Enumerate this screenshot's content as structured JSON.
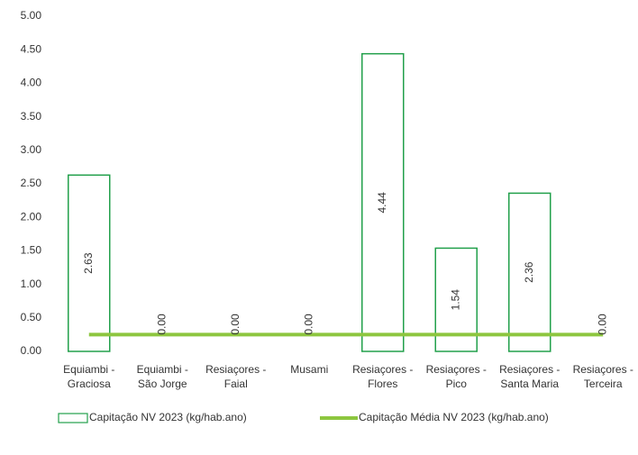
{
  "chart_data": {
    "type": "bar",
    "categories": [
      "Equiambi - Graciosa",
      "Equiambi - São Jorge",
      "Resiaçores - Faial",
      "Musami",
      "Resiaçores - Flores",
      "Resiaçores - Pico",
      "Resiaçores - Santa Maria",
      "Resiaçores - Terceira"
    ],
    "series": [
      {
        "name": "Capitação NV 2023 (kg/hab.ano)",
        "color": "#22a04b",
        "type": "bar",
        "values": [
          2.63,
          0,
          0,
          0,
          4.44,
          1.54,
          2.36,
          0
        ],
        "value_labels": [
          "2.63",
          "0.00",
          "0.00",
          "0.00",
          "4.44",
          "1.54",
          "2.36",
          "0.00"
        ]
      },
      {
        "name": "Capitação Média NV 2023 (kg/hab.ano)",
        "color": "#8dc63f",
        "type": "line",
        "values": [
          0.25,
          0.25,
          0.25,
          0.25,
          0.25,
          0.25,
          0.25,
          0.25
        ]
      }
    ],
    "ylim": [
      0,
      5
    ],
    "yticks": [
      {
        "value": 0,
        "label": "0.00"
      },
      {
        "value": 0.5,
        "label": "0.50"
      },
      {
        "value": 1,
        "label": "1.00"
      },
      {
        "value": 1.5,
        "label": "1.50"
      },
      {
        "value": 2,
        "label": "2.00"
      },
      {
        "value": 2.5,
        "label": "2.50"
      },
      {
        "value": 3,
        "label": "3.00"
      },
      {
        "value": 3.5,
        "label": "3.50"
      },
      {
        "value": 4,
        "label": "4.00"
      },
      {
        "value": 4.5,
        "label": "4.50"
      },
      {
        "value": 5,
        "label": "5.00"
      }
    ],
    "legend": "bottom"
  }
}
